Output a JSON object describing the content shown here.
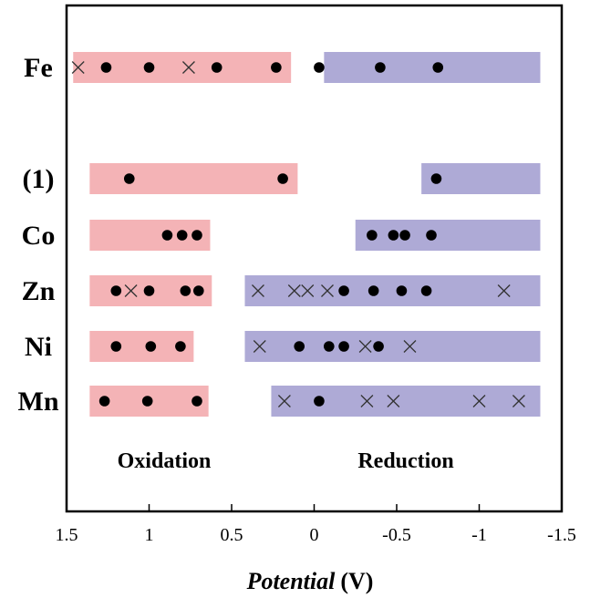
{
  "chart_data": {
    "type": "scatter",
    "xlabel": "Potential",
    "xlabel_unit": "(V)",
    "xlim": [
      1.5,
      -1.5
    ],
    "x_ticks": [
      {
        "value": 1.5,
        "label": "1.5"
      },
      {
        "value": 1,
        "label": "1"
      },
      {
        "value": 0.5,
        "label": "0.5"
      },
      {
        "value": 0,
        "label": "0"
      },
      {
        "value": -0.5,
        "label": "-0.5"
      },
      {
        "value": -1,
        "label": "-1"
      },
      {
        "value": -1.5,
        "label": "-1.5"
      }
    ],
    "section_labels": {
      "oxidation": "Oxidation",
      "reduction": "Reduction"
    },
    "colors": {
      "oxidation_band": "#f4b3b6",
      "reduction_band": "#aeaad6",
      "marker": "#000000",
      "frame": "#000000"
    },
    "rows": [
      {
        "label": "Fe",
        "oxidation_band": [
          1.46,
          0.14
        ],
        "reduction_band": [
          -0.06,
          -1.37
        ],
        "dots": [
          1.26,
          1.0,
          0.59,
          0.23,
          -0.03,
          -0.4,
          -0.75
        ],
        "crosses": [
          1.43,
          0.76
        ]
      },
      {
        "label": "(1)",
        "oxidation_band": [
          1.36,
          0.1
        ],
        "reduction_band": [
          -0.65,
          -1.37
        ],
        "dots": [
          1.12,
          0.19,
          -0.74
        ],
        "crosses": []
      },
      {
        "label": "Co",
        "oxidation_band": [
          1.36,
          0.63
        ],
        "reduction_band": [
          -0.25,
          -1.37
        ],
        "dots": [
          0.89,
          0.8,
          0.71,
          -0.35,
          -0.48,
          -0.55,
          -0.71
        ],
        "crosses": []
      },
      {
        "label": "Zn",
        "oxidation_band": [
          1.36,
          0.62
        ],
        "reduction_band": [
          0.42,
          -1.37
        ],
        "dots": [
          1.2,
          1.0,
          0.78,
          0.7,
          -0.18,
          -0.36,
          -0.53,
          -0.68
        ],
        "crosses": [
          1.11,
          0.34,
          0.12,
          0.04,
          -0.08,
          -1.15
        ]
      },
      {
        "label": "Ni",
        "oxidation_band": [
          1.36,
          0.73
        ],
        "reduction_band": [
          0.42,
          -1.37
        ],
        "dots": [
          1.2,
          0.99,
          0.81,
          0.09,
          -0.09,
          -0.18,
          -0.39
        ],
        "crosses": [
          0.33,
          -0.31,
          -0.58
        ]
      },
      {
        "label": "Mn",
        "oxidation_band": [
          1.36,
          0.64
        ],
        "reduction_band": [
          0.26,
          -1.37
        ],
        "dots": [
          1.27,
          1.01,
          0.71,
          -0.03
        ],
        "crosses": [
          0.18,
          -0.32,
          -0.48,
          -1.0,
          -1.24
        ]
      }
    ]
  }
}
